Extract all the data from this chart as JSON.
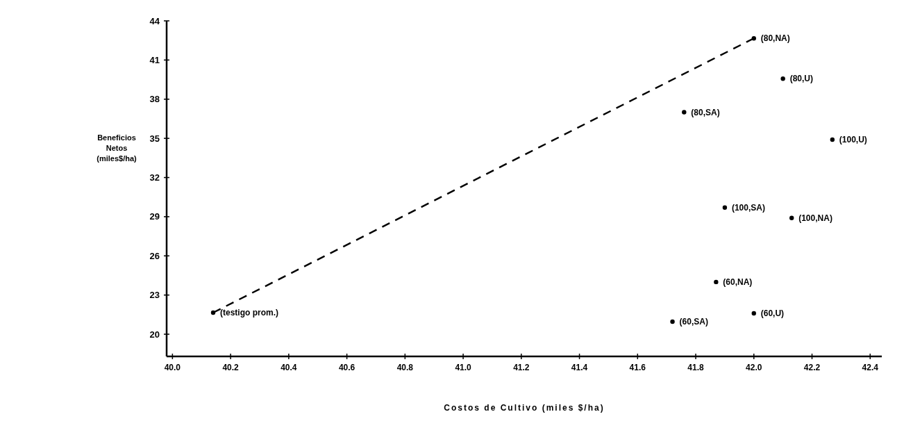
{
  "chart_data": {
    "type": "scatter",
    "xlabel": "Costos de Cultivo  (miles $/ha)",
    "ylabel": "Beneficios\nNetos\n(miles$/ha)",
    "xlim": [
      39.98,
      42.44
    ],
    "xticks": [
      {
        "value": 40.0,
        "label": "40.0"
      },
      {
        "value": 40.2,
        "label": "40.2"
      },
      {
        "value": 40.4,
        "label": "40.4"
      },
      {
        "value": 40.6,
        "label": "40.6"
      },
      {
        "value": 40.8,
        "label": "40.8"
      },
      {
        "value": 41.0,
        "label": "41.0"
      },
      {
        "value": 41.2,
        "label": "41.2"
      },
      {
        "value": 41.4,
        "label": "41.4"
      },
      {
        "value": 41.6,
        "label": "41.6"
      },
      {
        "value": 41.8,
        "label": "41.8"
      },
      {
        "value": 42.0,
        "label": "42.0"
      },
      {
        "value": 42.2,
        "label": "42.2"
      },
      {
        "value": 42.4,
        "label": "42.4"
      }
    ],
    "ylim": [
      18.3,
      44
    ],
    "yticks": [
      20,
      23,
      26,
      29,
      32,
      35,
      38,
      41,
      44
    ],
    "grid": false,
    "series": [
      {
        "color": "#000000",
        "marker": "circle",
        "x": [
          40.14,
          42.0,
          42.1,
          41.76,
          42.27,
          41.9,
          42.13,
          41.87,
          41.72,
          42.0
        ],
        "values": [
          21.65,
          42.66,
          39.57,
          37.0,
          34.9,
          29.7,
          28.9,
          24.0,
          20.96,
          21.6
        ]
      },
      {
        "type": "line",
        "color": "#000000",
        "marker": "none",
        "line_style": "dashed",
        "x": [
          40.14,
          42.0
        ],
        "values": [
          21.65,
          42.66
        ]
      }
    ],
    "annotations": [
      {
        "text": "(testigo prom.)",
        "x": 40.14,
        "y": 21.65
      },
      {
        "text": "(80,NA)",
        "x": 42.0,
        "y": 42.66
      },
      {
        "text": "(80,U)",
        "x": 42.1,
        "y": 39.57
      },
      {
        "text": "(80,SA)",
        "x": 41.76,
        "y": 37.0
      },
      {
        "text": "(100,U)",
        "x": 42.27,
        "y": 34.9
      },
      {
        "text": "(100,SA)",
        "x": 41.9,
        "y": 29.7
      },
      {
        "text": "(100,NA)",
        "x": 42.13,
        "y": 28.9
      },
      {
        "text": "(60,NA)",
        "x": 41.87,
        "y": 24.0
      },
      {
        "text": "(60,SA)",
        "x": 41.72,
        "y": 20.96
      },
      {
        "text": "(60,U)",
        "x": 42.0,
        "y": 21.6
      }
    ]
  }
}
